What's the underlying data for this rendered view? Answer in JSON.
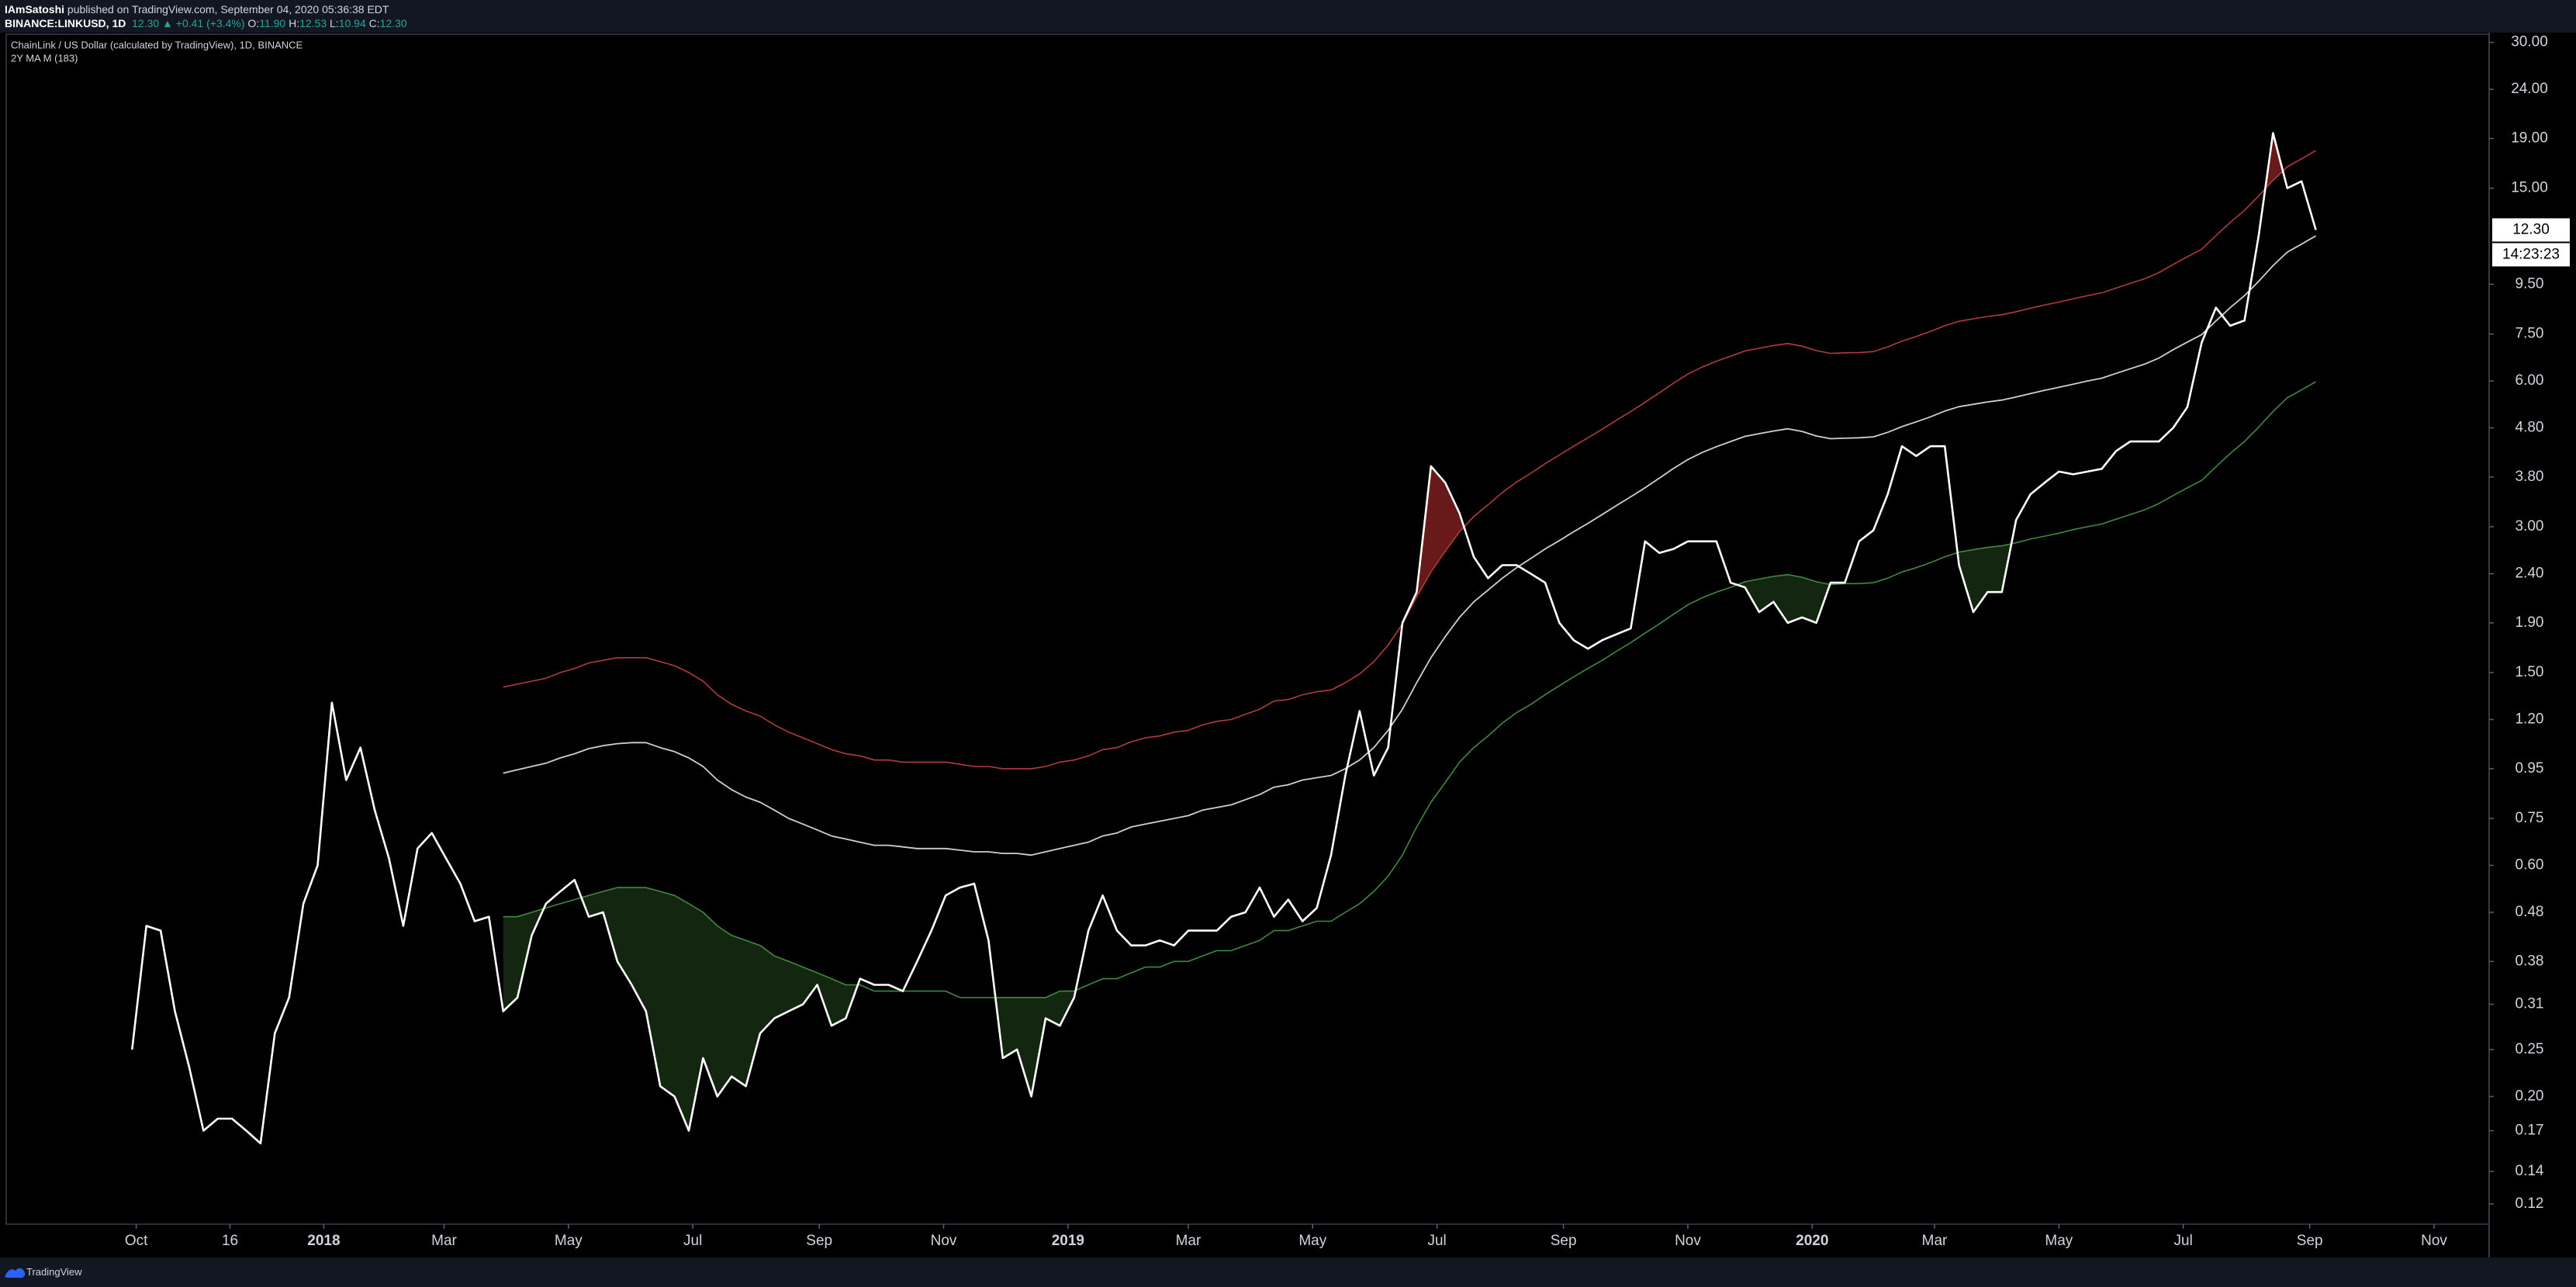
{
  "header": {
    "author": "IAmSatoshi",
    "published": "published on TradingView.com, September 04, 2020 05:36:38 EDT",
    "symbol": "BINANCE:LINKUSD, 1D",
    "change": "12.30 ▲ +0.41 (+3.4%)",
    "ohlc": [
      {
        "key": "O:",
        "value": "11.90"
      },
      {
        "key": "H:",
        "value": "12.53"
      },
      {
        "key": "L:",
        "value": "10.94"
      },
      {
        "key": "C:",
        "value": "12.30"
      }
    ]
  },
  "footer": {
    "brand": "TradingView"
  },
  "chart_data": {
    "type": "line",
    "title": "ChainLink / US Dollar (calculated by TradingView), 1D, BINANCE",
    "subtitle": "2Y MA M (183)",
    "log_scale": true,
    "grid": false,
    "xlim": [
      "2017-07-30",
      "2020-11-28"
    ],
    "xticks": [
      {
        "value": "2017-10-01",
        "label": "Oct"
      },
      {
        "value": "2017-11-16",
        "label": "16"
      },
      {
        "value": "2018-01-01",
        "label": "2018"
      },
      {
        "value": "2018-03-01",
        "label": "Mar"
      },
      {
        "value": "2018-05-01",
        "label": "May"
      },
      {
        "value": "2018-07-01",
        "label": "Jul"
      },
      {
        "value": "2018-09-01",
        "label": "Sep"
      },
      {
        "value": "2018-11-01",
        "label": "Nov"
      },
      {
        "value": "2019-01-01",
        "label": "2019"
      },
      {
        "value": "2019-03-01",
        "label": "Mar"
      },
      {
        "value": "2019-05-01",
        "label": "May"
      },
      {
        "value": "2019-07-01",
        "label": "Jul"
      },
      {
        "value": "2019-09-01",
        "label": "Sep"
      },
      {
        "value": "2019-11-01",
        "label": "Nov"
      },
      {
        "value": "2020-01-01",
        "label": "2020"
      },
      {
        "value": "2020-03-01",
        "label": "Mar"
      },
      {
        "value": "2020-05-01",
        "label": "May"
      },
      {
        "value": "2020-07-01",
        "label": "Jul"
      },
      {
        "value": "2020-09-01",
        "label": "Sep"
      },
      {
        "value": "2020-11-01",
        "label": "Nov"
      }
    ],
    "ylim": [
      0.109,
      31.2
    ],
    "yticks": [
      {
        "value": 30,
        "label": "30.00"
      },
      {
        "value": 24,
        "label": "24.00"
      },
      {
        "value": 19,
        "label": "19.00"
      },
      {
        "value": 15,
        "label": "15.00"
      },
      {
        "value": 9.5,
        "label": "9.50"
      },
      {
        "value": 7.5,
        "label": "7.50"
      },
      {
        "value": 6,
        "label": "6.00"
      },
      {
        "value": 4.8,
        "label": "4.80"
      },
      {
        "value": 3.8,
        "label": "3.80"
      },
      {
        "value": 3,
        "label": "3.00"
      },
      {
        "value": 2.4,
        "label": "2.40"
      },
      {
        "value": 1.9,
        "label": "1.90"
      },
      {
        "value": 1.5,
        "label": "1.50"
      },
      {
        "value": 1.2,
        "label": "1.20"
      },
      {
        "value": 0.95,
        "label": "0.95"
      },
      {
        "value": 0.75,
        "label": "0.75"
      },
      {
        "value": 0.6,
        "label": "0.60"
      },
      {
        "value": 0.48,
        "label": "0.48"
      },
      {
        "value": 0.38,
        "label": "0.38"
      },
      {
        "value": 0.31,
        "label": "0.31"
      },
      {
        "value": 0.25,
        "label": "0.25"
      },
      {
        "value": 0.2,
        "label": "0.20"
      },
      {
        "value": 0.17,
        "label": "0.17"
      },
      {
        "value": 0.14,
        "label": "0.14"
      },
      {
        "value": 0.12,
        "label": "0.12"
      }
    ],
    "price_label": {
      "value": 12.3,
      "label": "12.30"
    },
    "countdown": "14:23:23",
    "x": [
      "2017-09-29",
      "2017-10-06",
      "2017-10-13",
      "2017-10-20",
      "2017-10-27",
      "2017-11-03",
      "2017-11-10",
      "2017-11-17",
      "2017-11-24",
      "2017-12-01",
      "2017-12-08",
      "2017-12-15",
      "2017-12-22",
      "2017-12-29",
      "2018-01-05",
      "2018-01-12",
      "2018-01-19",
      "2018-01-26",
      "2018-02-02",
      "2018-02-09",
      "2018-02-16",
      "2018-02-23",
      "2018-03-02",
      "2018-03-09",
      "2018-03-16",
      "2018-03-23",
      "2018-03-30",
      "2018-04-06",
      "2018-04-13",
      "2018-04-20",
      "2018-04-27",
      "2018-05-04",
      "2018-05-11",
      "2018-05-18",
      "2018-05-25",
      "2018-06-01",
      "2018-06-08",
      "2018-06-15",
      "2018-06-22",
      "2018-06-29",
      "2018-07-06",
      "2018-07-13",
      "2018-07-20",
      "2018-07-27",
      "2018-08-03",
      "2018-08-10",
      "2018-08-17",
      "2018-08-24",
      "2018-08-31",
      "2018-09-07",
      "2018-09-14",
      "2018-09-21",
      "2018-09-28",
      "2018-10-05",
      "2018-10-12",
      "2018-10-19",
      "2018-10-26",
      "2018-11-02",
      "2018-11-09",
      "2018-11-16",
      "2018-11-23",
      "2018-11-30",
      "2018-12-07",
      "2018-12-14",
      "2018-12-21",
      "2018-12-28",
      "2019-01-04",
      "2019-01-11",
      "2019-01-18",
      "2019-01-25",
      "2019-02-01",
      "2019-02-08",
      "2019-02-15",
      "2019-02-22",
      "2019-03-01",
      "2019-03-08",
      "2019-03-15",
      "2019-03-22",
      "2019-03-29",
      "2019-04-05",
      "2019-04-12",
      "2019-04-19",
      "2019-04-26",
      "2019-05-03",
      "2019-05-10",
      "2019-05-17",
      "2019-05-24",
      "2019-05-31",
      "2019-06-07",
      "2019-06-14",
      "2019-06-21",
      "2019-06-28",
      "2019-07-05",
      "2019-07-12",
      "2019-07-19",
      "2019-07-26",
      "2019-08-02",
      "2019-08-09",
      "2019-08-16",
      "2019-08-23",
      "2019-08-30",
      "2019-09-06",
      "2019-09-13",
      "2019-09-20",
      "2019-09-27",
      "2019-10-04",
      "2019-10-11",
      "2019-10-18",
      "2019-10-25",
      "2019-11-01",
      "2019-11-08",
      "2019-11-15",
      "2019-11-22",
      "2019-11-29",
      "2019-12-06",
      "2019-12-13",
      "2019-12-20",
      "2019-12-27",
      "2020-01-03",
      "2020-01-10",
      "2020-01-17",
      "2020-01-24",
      "2020-01-31",
      "2020-02-07",
      "2020-02-14",
      "2020-02-21",
      "2020-02-28",
      "2020-03-06",
      "2020-03-13",
      "2020-03-20",
      "2020-03-27",
      "2020-04-03",
      "2020-04-10",
      "2020-04-17",
      "2020-04-24",
      "2020-05-01",
      "2020-05-08",
      "2020-05-15",
      "2020-05-22",
      "2020-05-29",
      "2020-06-05",
      "2020-06-12",
      "2020-06-19",
      "2020-06-26",
      "2020-07-03",
      "2020-07-10",
      "2020-07-17",
      "2020-07-24",
      "2020-07-31",
      "2020-08-07",
      "2020-08-14",
      "2020-08-21",
      "2020-08-28",
      "2020-09-04"
    ],
    "series": [
      {
        "color": "#ffffff",
        "width": 2.6,
        "values": [
          0.25,
          0.45,
          0.44,
          0.3,
          0.23,
          0.17,
          0.18,
          0.18,
          0.17,
          0.16,
          0.27,
          0.32,
          0.5,
          0.6,
          1.3,
          0.9,
          1.05,
          0.78,
          0.62,
          0.45,
          0.65,
          0.7,
          0.62,
          0.55,
          0.46,
          0.47,
          0.3,
          0.32,
          0.43,
          0.5,
          0.53,
          0.56,
          0.47,
          0.48,
          0.38,
          0.34,
          0.3,
          0.21,
          0.2,
          0.17,
          0.24,
          0.2,
          0.22,
          0.21,
          0.27,
          0.29,
          0.3,
          0.31,
          0.34,
          0.28,
          0.29,
          0.35,
          0.34,
          0.34,
          0.33,
          0.38,
          0.44,
          0.52,
          0.54,
          0.55,
          0.42,
          0.24,
          0.25,
          0.2,
          0.29,
          0.28,
          0.32,
          0.44,
          0.52,
          0.44,
          0.41,
          0.41,
          0.42,
          0.41,
          0.44,
          0.44,
          0.44,
          0.47,
          0.48,
          0.54,
          0.47,
          0.51,
          0.46,
          0.49,
          0.63,
          0.92,
          1.25,
          0.92,
          1.05,
          1.9,
          2.2,
          4.0,
          3.7,
          3.2,
          2.6,
          2.35,
          2.5,
          2.5,
          2.4,
          2.3,
          1.9,
          1.75,
          1.68,
          1.75,
          1.8,
          1.85,
          2.8,
          2.65,
          2.7,
          2.8,
          2.8,
          2.8,
          2.3,
          2.25,
          2.0,
          2.1,
          1.9,
          1.95,
          1.9,
          2.3,
          2.3,
          2.8,
          2.95,
          3.5,
          4.4,
          4.2,
          4.4,
          4.4,
          2.5,
          2.0,
          2.2,
          2.2,
          3.1,
          3.5,
          3.7,
          3.9,
          3.85,
          3.9,
          3.95,
          4.3,
          4.5,
          4.5,
          4.5,
          4.8,
          5.3,
          7.2,
          8.5,
          7.8,
          8.0,
          12.0,
          19.5,
          15.0,
          15.5,
          12.3
        ]
      },
      {
        "color": "#cfcfcf",
        "width": 1.8,
        "values": [
          null,
          null,
          null,
          null,
          null,
          null,
          null,
          null,
          null,
          null,
          null,
          null,
          null,
          null,
          null,
          null,
          null,
          null,
          null,
          null,
          null,
          null,
          null,
          null,
          null,
          null,
          0.93,
          0.945,
          0.96,
          0.975,
          1.0,
          1.02,
          1.045,
          1.06,
          1.07,
          1.075,
          1.075,
          1.05,
          1.03,
          1.0,
          0.96,
          0.9,
          0.86,
          0.83,
          0.81,
          0.78,
          0.75,
          0.73,
          0.71,
          0.69,
          0.68,
          0.67,
          0.66,
          0.66,
          0.655,
          0.65,
          0.65,
          0.65,
          0.645,
          0.64,
          0.64,
          0.635,
          0.635,
          0.63,
          0.64,
          0.65,
          0.66,
          0.67,
          0.69,
          0.7,
          0.72,
          0.73,
          0.74,
          0.75,
          0.76,
          0.78,
          0.79,
          0.8,
          0.82,
          0.84,
          0.87,
          0.88,
          0.9,
          0.91,
          0.92,
          0.95,
          0.99,
          1.05,
          1.14,
          1.26,
          1.43,
          1.61,
          1.78,
          1.95,
          2.1,
          2.22,
          2.35,
          2.47,
          2.58,
          2.7,
          2.81,
          2.93,
          3.05,
          3.18,
          3.32,
          3.46,
          3.61,
          3.78,
          3.96,
          4.13,
          4.27,
          4.39,
          4.5,
          4.61,
          4.67,
          4.73,
          4.78,
          4.72,
          4.62,
          4.56,
          4.57,
          4.58,
          4.6,
          4.7,
          4.83,
          4.94,
          5.06,
          5.2,
          5.31,
          5.37,
          5.43,
          5.48,
          5.56,
          5.65,
          5.74,
          5.82,
          5.91,
          6.0,
          6.08,
          6.22,
          6.36,
          6.5,
          6.69,
          6.96,
          7.22,
          7.48,
          7.98,
          8.5,
          9.0,
          9.64,
          10.38,
          11.07,
          11.5,
          11.96
        ]
      },
      {
        "color": "#b23b3b",
        "width": 1.6,
        "values": [
          null,
          null,
          null,
          null,
          null,
          null,
          null,
          null,
          null,
          null,
          null,
          null,
          null,
          null,
          null,
          null,
          null,
          null,
          null,
          null,
          null,
          null,
          null,
          null,
          null,
          null,
          1.4,
          1.42,
          1.44,
          1.46,
          1.5,
          1.53,
          1.57,
          1.59,
          1.61,
          1.61,
          1.61,
          1.58,
          1.55,
          1.5,
          1.44,
          1.35,
          1.29,
          1.25,
          1.22,
          1.17,
          1.13,
          1.1,
          1.07,
          1.04,
          1.02,
          1.01,
          0.99,
          0.99,
          0.98,
          0.98,
          0.98,
          0.98,
          0.97,
          0.96,
          0.96,
          0.95,
          0.95,
          0.95,
          0.96,
          0.98,
          0.99,
          1.01,
          1.04,
          1.05,
          1.08,
          1.1,
          1.11,
          1.13,
          1.14,
          1.17,
          1.19,
          1.2,
          1.23,
          1.26,
          1.31,
          1.32,
          1.35,
          1.37,
          1.38,
          1.43,
          1.49,
          1.58,
          1.71,
          1.89,
          2.15,
          2.42,
          2.67,
          2.93,
          3.15,
          3.33,
          3.53,
          3.71,
          3.87,
          4.05,
          4.22,
          4.4,
          4.58,
          4.77,
          4.98,
          5.19,
          5.42,
          5.67,
          5.94,
          6.2,
          6.41,
          6.59,
          6.75,
          6.92,
          7.01,
          7.1,
          7.17,
          7.08,
          6.93,
          6.84,
          6.86,
          6.87,
          6.9,
          7.05,
          7.25,
          7.41,
          7.59,
          7.8,
          7.97,
          8.06,
          8.15,
          8.22,
          8.34,
          8.48,
          8.61,
          8.73,
          8.87,
          9.0,
          9.12,
          9.33,
          9.54,
          9.75,
          10.04,
          10.44,
          10.83,
          11.22,
          11.97,
          12.75,
          13.5,
          14.46,
          15.57,
          16.61,
          17.25,
          17.94
        ]
      },
      {
        "color": "#3f8a3f",
        "width": 1.6,
        "values": [
          null,
          null,
          null,
          null,
          null,
          null,
          null,
          null,
          null,
          null,
          null,
          null,
          null,
          null,
          null,
          null,
          null,
          null,
          null,
          null,
          null,
          null,
          null,
          null,
          null,
          null,
          0.47,
          0.47,
          0.48,
          0.49,
          0.5,
          0.51,
          0.52,
          0.53,
          0.54,
          0.54,
          0.54,
          0.53,
          0.52,
          0.5,
          0.48,
          0.45,
          0.43,
          0.42,
          0.41,
          0.39,
          0.38,
          0.37,
          0.36,
          0.35,
          0.34,
          0.34,
          0.33,
          0.33,
          0.33,
          0.33,
          0.33,
          0.33,
          0.32,
          0.32,
          0.32,
          0.32,
          0.32,
          0.32,
          0.32,
          0.33,
          0.33,
          0.34,
          0.35,
          0.35,
          0.36,
          0.37,
          0.37,
          0.38,
          0.38,
          0.39,
          0.4,
          0.4,
          0.41,
          0.42,
          0.44,
          0.44,
          0.45,
          0.46,
          0.46,
          0.48,
          0.5,
          0.53,
          0.57,
          0.63,
          0.72,
          0.81,
          0.89,
          0.98,
          1.05,
          1.11,
          1.18,
          1.24,
          1.29,
          1.35,
          1.41,
          1.47,
          1.53,
          1.59,
          1.66,
          1.73,
          1.81,
          1.89,
          1.98,
          2.07,
          2.14,
          2.2,
          2.25,
          2.31,
          2.34,
          2.37,
          2.39,
          2.36,
          2.31,
          2.28,
          2.29,
          2.29,
          2.3,
          2.35,
          2.42,
          2.47,
          2.53,
          2.6,
          2.66,
          2.69,
          2.72,
          2.74,
          2.78,
          2.83,
          2.87,
          2.91,
          2.96,
          3.0,
          3.04,
          3.11,
          3.18,
          3.25,
          3.35,
          3.48,
          3.61,
          3.74,
          3.99,
          4.25,
          4.5,
          4.82,
          5.19,
          5.54,
          5.75,
          5.98
        ]
      }
    ],
    "fills": [
      {
        "line": 0,
        "band": 2,
        "side": "above",
        "color": "rgba(190,45,45,0.55)"
      },
      {
        "line": 0,
        "band": 3,
        "side": "below",
        "color": "rgba(60,120,50,0.32)"
      }
    ]
  }
}
